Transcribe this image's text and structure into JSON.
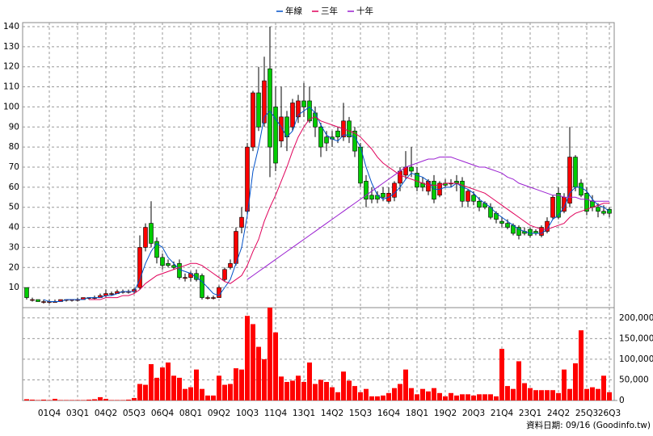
{
  "chart_data": [
    {
      "type": "candlestick",
      "legend_position": "top",
      "grid": true,
      "up_color": "#ff0000",
      "down_color": "#00cc00",
      "ylim": [
        0,
        142
      ],
      "yticks": [
        10,
        20,
        30,
        40,
        50,
        60,
        70,
        80,
        90,
        100,
        110,
        120,
        130,
        140
      ],
      "categories": [
        null,
        null,
        null,
        null,
        "01Q4",
        null,
        null,
        null,
        null,
        "03Q1",
        null,
        null,
        null,
        null,
        "04Q2",
        null,
        null,
        null,
        null,
        "05Q3",
        null,
        null,
        null,
        null,
        "06Q4",
        null,
        null,
        null,
        null,
        "08Q1",
        null,
        null,
        null,
        null,
        "09Q2",
        null,
        null,
        null,
        null,
        "10Q3",
        null,
        null,
        null,
        null,
        "11Q4",
        null,
        null,
        null,
        null,
        "13Q1",
        null,
        null,
        null,
        null,
        "14Q2",
        null,
        null,
        null,
        null,
        "15Q3",
        null,
        null,
        null,
        null,
        "16Q4",
        null,
        null,
        null,
        null,
        "18Q1",
        null,
        null,
        null,
        null,
        "19Q2",
        null,
        null,
        null,
        null,
        "20Q3",
        null,
        null,
        null,
        null,
        "21Q4",
        null,
        null,
        null,
        null,
        "23Q1",
        null,
        null,
        null,
        null,
        "24Q2",
        null,
        null,
        null,
        null,
        "25Q3",
        null,
        null,
        null,
        "26Q3"
      ],
      "open": [
        10,
        4,
        4,
        3,
        3,
        3,
        3,
        4,
        4,
        4,
        4,
        5,
        5,
        5,
        6,
        7,
        7,
        8,
        8,
        8,
        10,
        30,
        42,
        33,
        25,
        22,
        21,
        22,
        15,
        15,
        17,
        16,
        5,
        5,
        5,
        14,
        20,
        22,
        40,
        48,
        80,
        107,
        92,
        119,
        100,
        83,
        95,
        90,
        95,
        103,
        103,
        97,
        90,
        85,
        85,
        88,
        85,
        93,
        88,
        80,
        63,
        56,
        56,
        57,
        53,
        55,
        62,
        66,
        70,
        67,
        62,
        58,
        63,
        56,
        62,
        62,
        63,
        63,
        53,
        56,
        53,
        52,
        50,
        47,
        43,
        42,
        41,
        40,
        38,
        39,
        38,
        36,
        38,
        45,
        57,
        48,
        52,
        75,
        62,
        57,
        53,
        50,
        48,
        49
      ],
      "high": [
        10,
        5,
        4,
        4,
        4,
        4,
        4,
        4,
        4,
        5,
        5,
        5,
        6,
        7,
        9,
        8,
        9,
        9,
        9,
        10,
        36,
        42,
        53,
        35,
        27,
        24,
        23,
        24,
        17,
        18,
        19,
        17,
        6,
        6,
        11,
        20,
        24,
        40,
        50,
        82,
        108,
        120,
        125,
        140,
        110,
        110,
        98,
        104,
        106,
        112,
        110,
        100,
        92,
        88,
        88,
        90,
        102,
        95,
        90,
        82,
        66,
        60,
        58,
        60,
        60,
        63,
        70,
        78,
        80,
        70,
        65,
        64,
        66,
        63,
        64,
        64,
        66,
        65,
        59,
        58,
        55,
        53,
        52,
        48,
        45,
        44,
        42,
        41,
        40,
        40,
        39,
        41,
        45,
        56,
        60,
        57,
        90,
        76,
        64,
        60,
        56,
        52,
        51,
        50
      ],
      "low": [
        4,
        3,
        3,
        2,
        2,
        3,
        3,
        3,
        3,
        3,
        4,
        4,
        4,
        5,
        5,
        6,
        7,
        7,
        7,
        7,
        9,
        28,
        30,
        22,
        19,
        20,
        19,
        14,
        13,
        13,
        13,
        4,
        4,
        4,
        5,
        13,
        19,
        21,
        37,
        46,
        78,
        88,
        90,
        65,
        68,
        80,
        78,
        88,
        92,
        95,
        92,
        85,
        75,
        78,
        80,
        82,
        83,
        82,
        75,
        60,
        50,
        52,
        52,
        53,
        52,
        53,
        58,
        64,
        65,
        58,
        58,
        56,
        52,
        55,
        60,
        60,
        58,
        50,
        50,
        51,
        48,
        49,
        44,
        42,
        40,
        39,
        36,
        34,
        36,
        35,
        36,
        35,
        37,
        44,
        44,
        47,
        50,
        58,
        55,
        46,
        48,
        45,
        46,
        45
      ],
      "close": [
        5,
        4,
        3,
        3,
        3,
        3,
        4,
        4,
        4,
        4,
        5,
        5,
        5,
        6,
        7,
        7,
        8,
        8,
        8,
        9,
        30,
        40,
        32,
        25,
        21,
        21,
        20,
        15,
        15,
        17,
        14,
        5,
        5,
        5,
        10,
        19,
        22,
        38,
        45,
        80,
        107,
        90,
        113,
        80,
        72,
        95,
        85,
        102,
        103,
        100,
        93,
        90,
        80,
        82,
        84,
        85,
        93,
        85,
        78,
        62,
        54,
        54,
        54,
        55,
        57,
        62,
        68,
        70,
        68,
        60,
        60,
        63,
        54,
        62,
        61,
        62,
        62,
        53,
        58,
        53,
        50,
        50,
        45,
        44,
        42,
        40,
        37,
        36,
        37,
        36,
        37,
        40,
        43,
        55,
        45,
        55,
        75,
        60,
        56,
        48,
        50,
        48,
        47,
        47
      ],
      "series": [
        {
          "name": "年線",
          "color": "#0050c8",
          "values": [
            null,
            null,
            null,
            4,
            3,
            3,
            3,
            4,
            4,
            4,
            4,
            5,
            5,
            5,
            6,
            6,
            7,
            8,
            8,
            8,
            14,
            22,
            28,
            32,
            30,
            25,
            22,
            19,
            18,
            17,
            15,
            13,
            10,
            7,
            6,
            10,
            14,
            22,
            30,
            46,
            68,
            80,
            95,
            98,
            94,
            90,
            85,
            88,
            96,
            98,
            100,
            97,
            91,
            86,
            84,
            83,
            86,
            86,
            85,
            80,
            70,
            62,
            56,
            54,
            55,
            57,
            60,
            64,
            67,
            66,
            65,
            63,
            59,
            59,
            60,
            60,
            62,
            60,
            59,
            57,
            54,
            52,
            50,
            47,
            45,
            43,
            41,
            39,
            38,
            37,
            37,
            37,
            39,
            44,
            46,
            50,
            57,
            60,
            60,
            58,
            54,
            51,
            50,
            48
          ]
        },
        {
          "name": "三年",
          "color": "#e0005a",
          "values": [
            null,
            null,
            null,
            null,
            null,
            null,
            null,
            null,
            null,
            null,
            null,
            4,
            4,
            4,
            5,
            5,
            5,
            6,
            6,
            7,
            9,
            12,
            14,
            16,
            17,
            18,
            19,
            20,
            21,
            22,
            22,
            21,
            19,
            17,
            15,
            13,
            12,
            14,
            16,
            21,
            28,
            34,
            43,
            50,
            56,
            63,
            70,
            78,
            85,
            90,
            94,
            95,
            93,
            92,
            91,
            90,
            89,
            88,
            87,
            85,
            82,
            79,
            75,
            72,
            70,
            68,
            66,
            65,
            64,
            63,
            62,
            61,
            61,
            61,
            62,
            62,
            62,
            61,
            60,
            59,
            58,
            57,
            55,
            53,
            51,
            49,
            47,
            45,
            43,
            41,
            40,
            39,
            39,
            40,
            41,
            42,
            45,
            47,
            48,
            49,
            50,
            51,
            52,
            52
          ]
        },
        {
          "name": "十年",
          "color": "#9a1fd0",
          "values": [
            null,
            null,
            null,
            null,
            null,
            null,
            null,
            null,
            null,
            null,
            null,
            null,
            null,
            null,
            null,
            null,
            null,
            null,
            null,
            null,
            null,
            null,
            null,
            null,
            null,
            null,
            null,
            null,
            null,
            null,
            null,
            null,
            null,
            null,
            null,
            null,
            null,
            null,
            null,
            14,
            16,
            18,
            20,
            22,
            24,
            26,
            28,
            30,
            32,
            34,
            36,
            38,
            40,
            42,
            44,
            46,
            48,
            50,
            52,
            54,
            56,
            58,
            60,
            62,
            64,
            66,
            68,
            70,
            71,
            72,
            73,
            74,
            74,
            75,
            75,
            75,
            74,
            73,
            72,
            71,
            70,
            70,
            69,
            68,
            67,
            65,
            64,
            62,
            61,
            60,
            59,
            58,
            57,
            56,
            56,
            55,
            55,
            55,
            54,
            54,
            53,
            53,
            53,
            53
          ]
        }
      ]
    },
    {
      "type": "bar",
      "color": "#ff0000",
      "ylim": [
        0,
        225000
      ],
      "yticks": [
        0,
        {
          "value": 50000,
          "label": "50,000"
        },
        {
          "value": 100000,
          "label": "100,000"
        },
        {
          "value": 150000,
          "label": "150,000"
        },
        {
          "value": 200000,
          "label": "200,000"
        }
      ],
      "values": [
        3000,
        2000,
        1000,
        2000,
        1000,
        4000,
        1000,
        1000,
        1000,
        1000,
        1000,
        2000,
        3000,
        8000,
        4000,
        1000,
        1000,
        1000,
        2000,
        6000,
        40000,
        38000,
        88000,
        55000,
        80000,
        92000,
        60000,
        55000,
        28000,
        32000,
        75000,
        28000,
        12000,
        12000,
        60000,
        38000,
        40000,
        78000,
        75000,
        205000,
        185000,
        130000,
        100000,
        225000,
        165000,
        58000,
        45000,
        48000,
        60000,
        45000,
        92000,
        40000,
        50000,
        45000,
        32000,
        20000,
        70000,
        48000,
        35000,
        20000,
        28000,
        10000,
        10000,
        12000,
        18000,
        30000,
        40000,
        75000,
        30000,
        15000,
        28000,
        22000,
        30000,
        18000,
        10000,
        18000,
        12000,
        15000,
        15000,
        12000,
        15000,
        15000,
        15000,
        10000,
        125000,
        35000,
        28000,
        95000,
        42000,
        30000,
        25000,
        25000,
        25000,
        25000,
        18000,
        75000,
        28000,
        90000,
        170000,
        28000,
        32000,
        28000,
        60000,
        20000
      ]
    }
  ],
  "source": "資料日期: 09/16 (Goodinfo.tw)"
}
